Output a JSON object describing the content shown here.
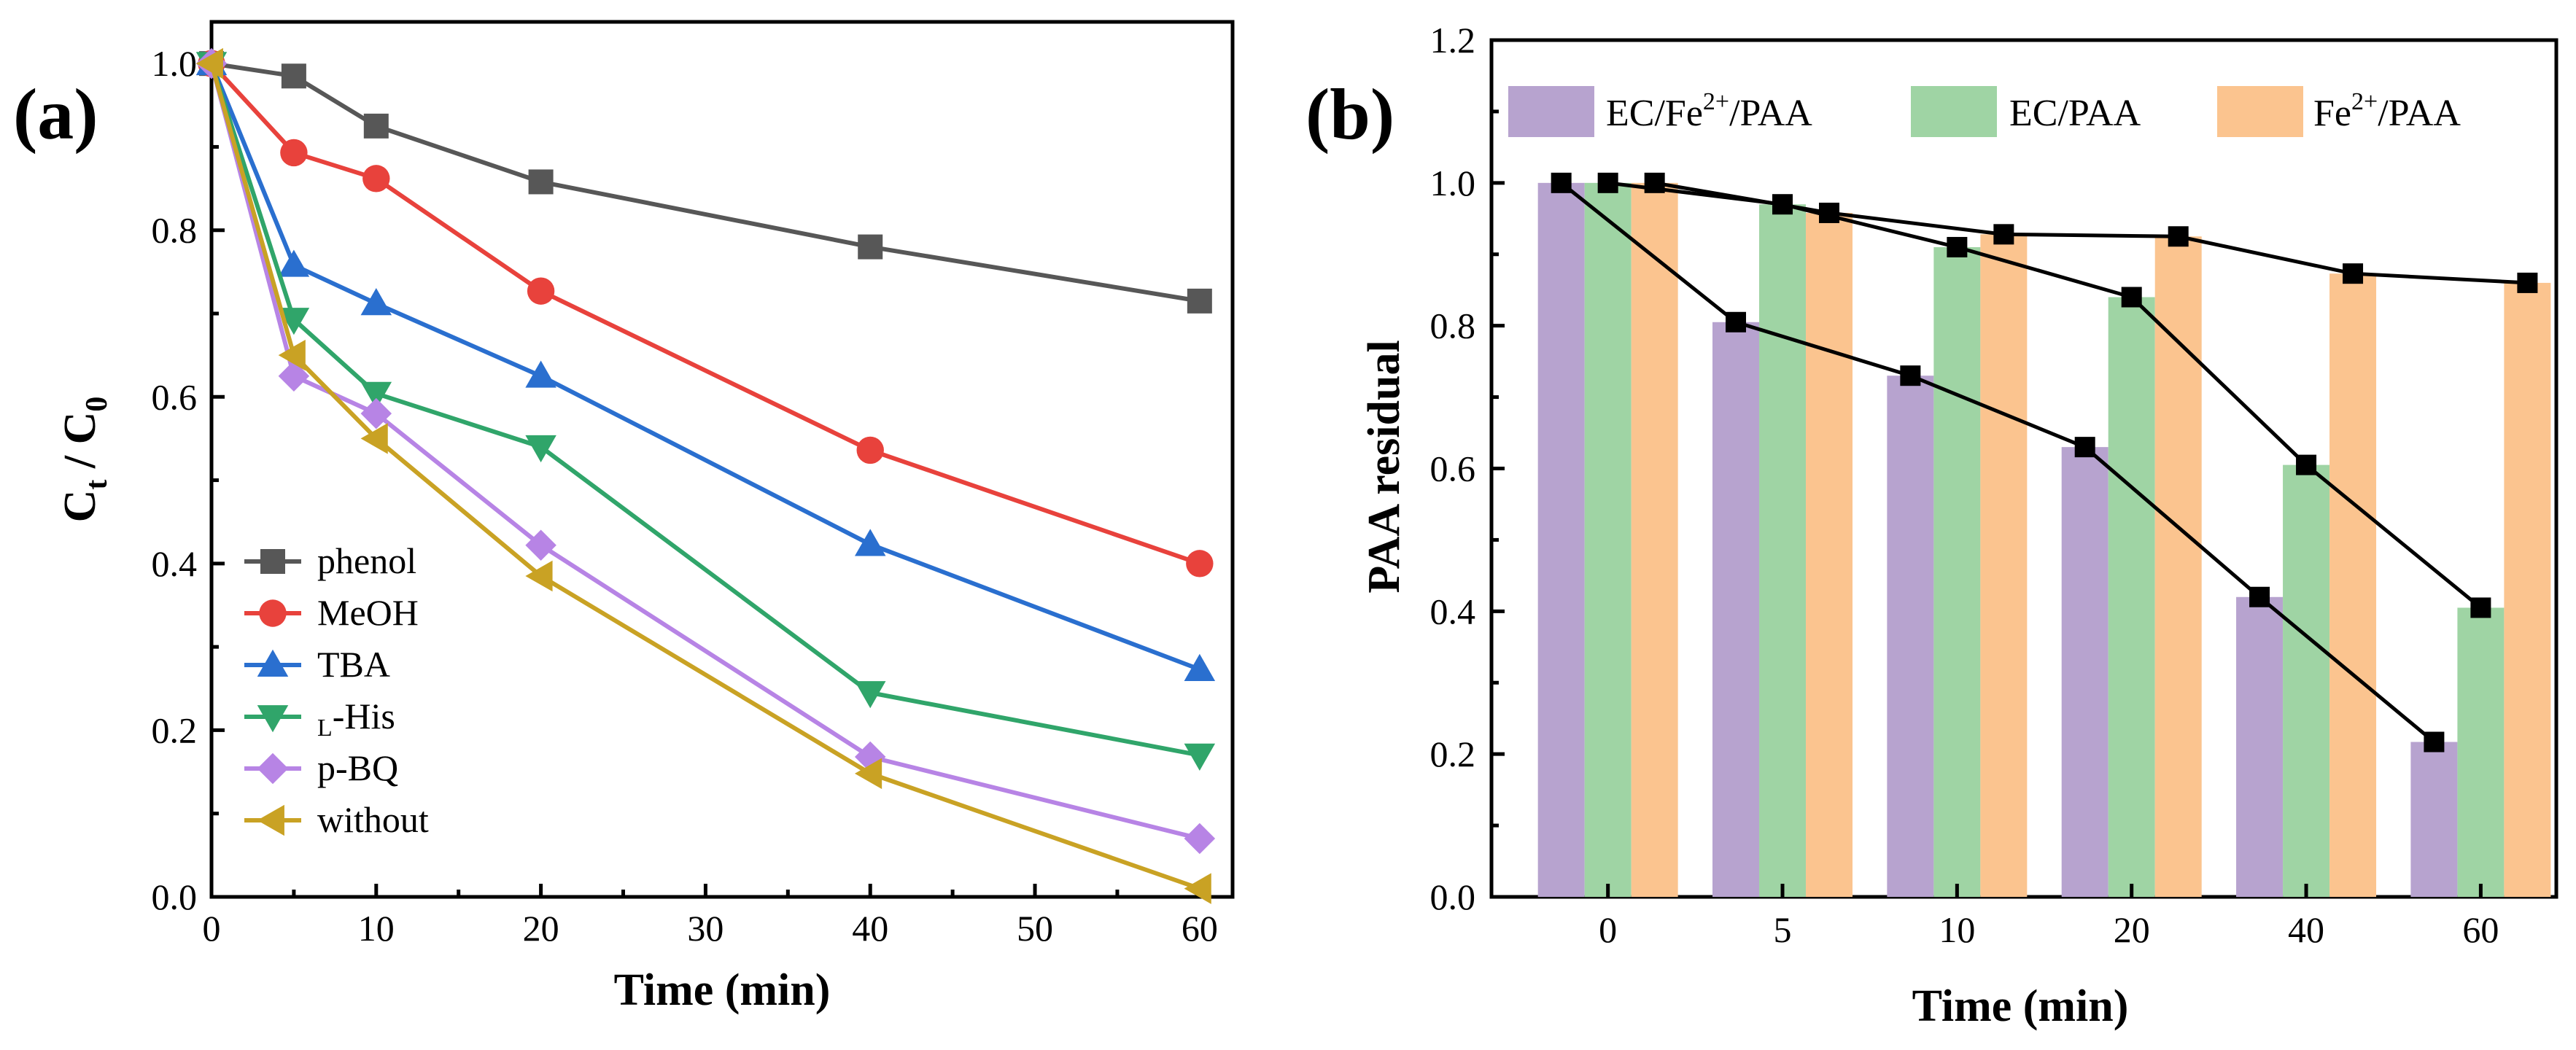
{
  "chart_data": [
    {
      "panel": "(a)",
      "type": "line",
      "xlabel": "Time (min)",
      "ylabel": "Ct / C0",
      "ylabel_parts": {
        "main1": "C",
        "sub1": "t",
        "sep": " / ",
        "main2": "C",
        "sub2": "0"
      },
      "xlim": [
        0,
        62
      ],
      "ylim": [
        0,
        1.05
      ],
      "xticks": [
        0,
        10,
        20,
        30,
        40,
        50,
        60
      ],
      "yticks": [
        "0.0",
        "0.2",
        "0.4",
        "0.6",
        "0.8",
        "1.0"
      ],
      "legend_position": "lower-left",
      "series": [
        {
          "name": "phenol",
          "name_sub": "",
          "name_rest": "phenol",
          "color": "#575757",
          "marker": "square",
          "x": [
            0,
            5,
            10,
            20,
            40,
            60
          ],
          "y": [
            1.0,
            0.985,
            0.925,
            0.858,
            0.78,
            0.715
          ]
        },
        {
          "name": "MeOH",
          "name_sub": "",
          "name_rest": "MeOH",
          "color": "#e8423c",
          "marker": "circle",
          "x": [
            0,
            5,
            10,
            20,
            40,
            60
          ],
          "y": [
            1.0,
            0.893,
            0.862,
            0.727,
            0.536,
            0.4
          ]
        },
        {
          "name": "TBA",
          "name_sub": "",
          "name_rest": "TBA",
          "color": "#2a6fcf",
          "marker": "triangle-up",
          "x": [
            0,
            5,
            10,
            20,
            40,
            60
          ],
          "y": [
            1.0,
            0.758,
            0.712,
            0.625,
            0.423,
            0.273
          ]
        },
        {
          "name": "L-His",
          "name_sub": "L",
          "name_rest": "-His",
          "color": "#30a56a",
          "marker": "triangle-down",
          "x": [
            0,
            5,
            10,
            20,
            40,
            60
          ],
          "y": [
            1.0,
            0.693,
            0.604,
            0.54,
            0.245,
            0.17
          ]
        },
        {
          "name": "p-BQ",
          "name_sub": "",
          "name_rest": "p-BQ",
          "color": "#b784e5",
          "marker": "diamond",
          "x": [
            0,
            5,
            10,
            20,
            40,
            60
          ],
          "y": [
            1.0,
            0.625,
            0.58,
            0.422,
            0.168,
            0.07
          ]
        },
        {
          "name": "without",
          "name_sub": "",
          "name_rest": "without",
          "color": "#c9a224",
          "marker": "triangle-left",
          "x": [
            0,
            5,
            10,
            20,
            40,
            60
          ],
          "y": [
            1.0,
            0.65,
            0.55,
            0.385,
            0.148,
            0.01
          ]
        }
      ]
    },
    {
      "panel": "(b)",
      "type": "bar",
      "xlabel": "Time (min)",
      "ylabel": "PAA residual",
      "categories": [
        "0",
        "5",
        "10",
        "20",
        "40",
        "60"
      ],
      "ylim": [
        0,
        1.2
      ],
      "yticks": [
        "0.0",
        "0.2",
        "0.4",
        "0.6",
        "0.8",
        "1.0",
        "1.2"
      ],
      "legend_position": "top",
      "series": [
        {
          "name": "EC/Fe2+/PAA",
          "color": "#b7a3cf",
          "marker_line": "#000000",
          "values": [
            1.0,
            0.805,
            0.73,
            0.63,
            0.42,
            0.217
          ]
        },
        {
          "name": "EC/PAA",
          "color": "#9fd4a4",
          "marker_line": "#000000",
          "values": [
            1.0,
            0.97,
            0.91,
            0.84,
            0.605,
            0.405
          ]
        },
        {
          "name": "Fe2+/PAA",
          "color": "#fbc48f",
          "marker_line": "#000000",
          "values": [
            1.0,
            0.958,
            0.928,
            0.925,
            0.873,
            0.86
          ]
        }
      ],
      "legend_labels": [
        {
          "pre": "EC/Fe",
          "sup": "2+",
          "post": "/PAA"
        },
        {
          "pre": "EC/PAA",
          "sup": "",
          "post": ""
        },
        {
          "pre": "Fe",
          "sup": "2+",
          "post": "/PAA"
        }
      ]
    }
  ]
}
